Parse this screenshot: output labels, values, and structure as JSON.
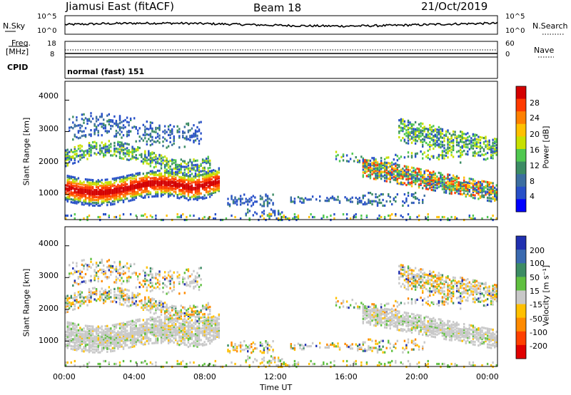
{
  "header": {
    "station": "Jiamusi East (fitACF)",
    "beam": "Beam 18",
    "date": "21/Oct/2019"
  },
  "noise_panel": {
    "left_label": "N.Sky",
    "right_label": "N.Search",
    "y_ticks_left": [
      "10^5",
      "10^0"
    ],
    "y_ticks_right": [
      "10^5",
      "10^0"
    ]
  },
  "freq_panel": {
    "left_label_1": "Freq.",
    "left_label_2": "[MHz]",
    "left_ticks": [
      "18",
      "8"
    ],
    "right_label": "Nave",
    "right_ticks": [
      "60",
      "0"
    ],
    "cpid_label": "CPID",
    "cpid_value": "normal (fast) 151"
  },
  "chart_data": [
    {
      "type": "heatmap",
      "name": "power",
      "ylabel": "Slant Range [km]",
      "y_ticks": [
        "4000",
        "3000",
        "2000",
        "1000"
      ],
      "ylim": [
        200,
        4600
      ],
      "xlim_hours": [
        0,
        24
      ],
      "colorbar": {
        "label": "Power [dB]",
        "ticks": [
          "28",
          "24",
          "20",
          "16",
          "12",
          "8",
          "4"
        ],
        "colors": [
          "#d40000",
          "#ff3a00",
          "#ff8000",
          "#ffc000",
          "#c8e000",
          "#50c850",
          "#3c8c64",
          "#3c6ea0",
          "#2850c8",
          "#0000ff"
        ]
      }
    },
    {
      "type": "heatmap",
      "name": "velocity",
      "ylabel": "Slant Range [km]",
      "y_ticks": [
        "4000",
        "3000",
        "2000",
        "1000"
      ],
      "ylim": [
        200,
        4600
      ],
      "xlim_hours": [
        0,
        24
      ],
      "colorbar": {
        "label": "Velocity [m s⁻¹]",
        "ticks": [
          "200",
          "100",
          "50",
          "15",
          "-15",
          "-50",
          "-100",
          "-200"
        ],
        "colors": [
          "#2030b0",
          "#3a6ab0",
          "#3c8c64",
          "#60c040",
          "#c8c8c8",
          "#ffc000",
          "#ff8a00",
          "#ff4000",
          "#e00000"
        ]
      }
    }
  ],
  "x_axis": {
    "ticks": [
      "00:00",
      "04:00",
      "08:00",
      "12:00",
      "16:00",
      "20:00",
      "00:00"
    ],
    "label": "Time UT"
  }
}
